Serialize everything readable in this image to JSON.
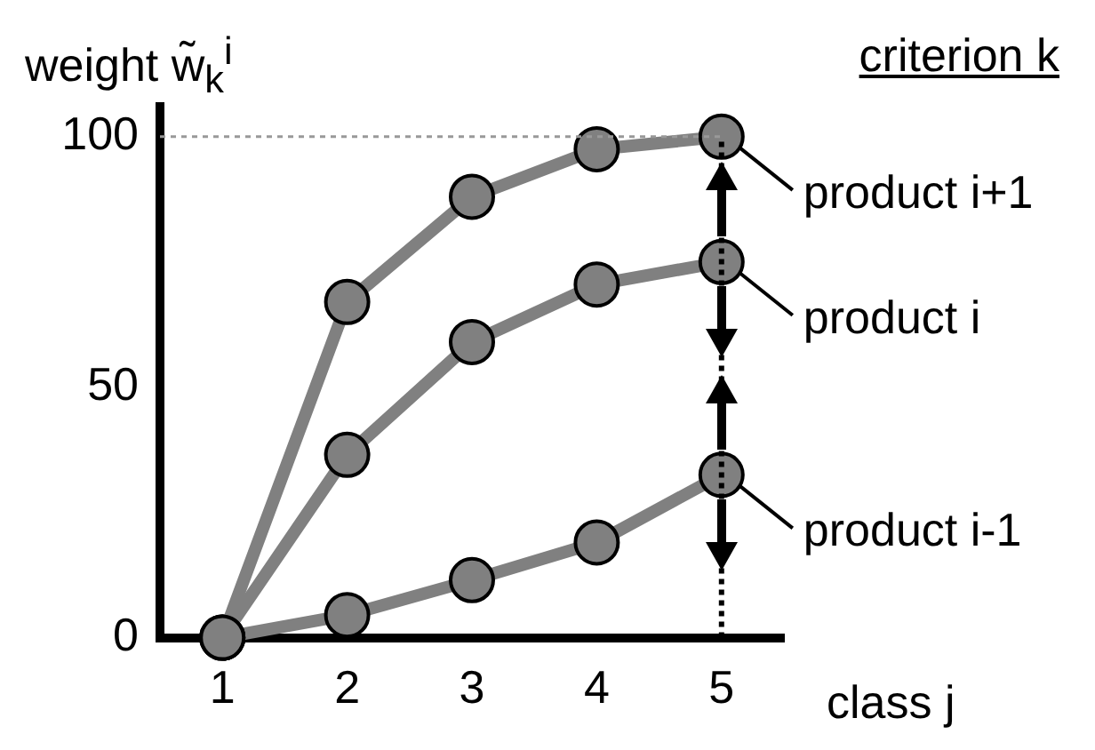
{
  "chart_data": {
    "type": "line",
    "title": "criterion k",
    "xlabel": "class j",
    "ylabel": "weight w̃$_{k}$$^{i}$",
    "categories": [
      "1",
      "2",
      "3",
      "4",
      "5"
    ],
    "ylim": [
      0,
      106
    ],
    "yticks": [
      0,
      50,
      100
    ],
    "series": [
      {
        "name": "product i+1",
        "color": "#808080",
        "values": [
          0,
          67,
          88,
          97.5,
          100
        ]
      },
      {
        "name": "product i",
        "color": "#808080",
        "values": [
          0,
          36.5,
          59,
          70.5,
          75
        ]
      },
      {
        "name": "product i-1",
        "color": "#808080",
        "values": [
          0,
          4.5,
          11.5,
          19,
          32.5
        ]
      }
    ],
    "ref_lines": [
      {
        "axis": "y",
        "value": 100,
        "color": "#999999",
        "line_style": "dotted"
      },
      {
        "axis": "x",
        "value": "5",
        "color": "#000000",
        "line_style": "dotted"
      }
    ],
    "marker": "circle",
    "line_style": "solid",
    "grid": false,
    "legend": "right"
  }
}
